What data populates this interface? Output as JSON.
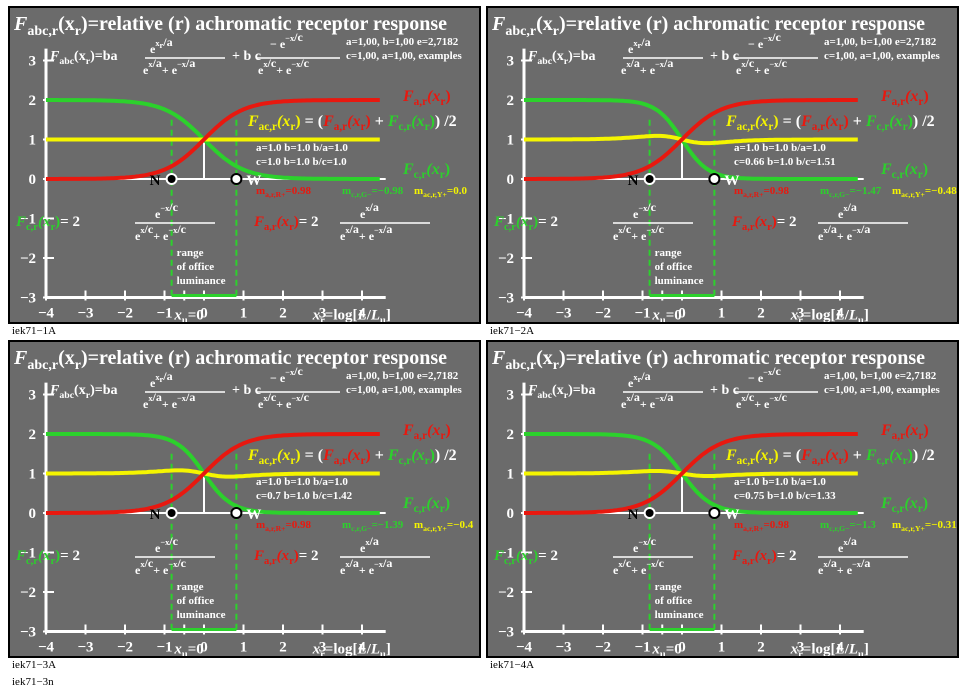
{
  "figure_code": "iek71−3n",
  "common": {
    "title_prefix": "F",
    "title_sub": "abc,r",
    "title_arg": "(x",
    "title_arg_sub": "r",
    "title_rest": ")=relative (r) achromatic receptor response",
    "formula_lhs": "F",
    "formula_lhs_sub": "abc",
    "formula_lhs_arg": "(x",
    "formula_lhs_arg_sub": "r",
    "formula_lhs_close": ")=ba",
    "formula_mid": "+ b c",
    "formula_num_a": "e",
    "formula_num_a_sup": "x",
    "formula_num_a_supsub": "r",
    "formula_num_a_supdiv": "/a",
    "formula_den_a": "e",
    "formula_den_a_plus": "+ e",
    "formula_den_a_sup1": "x",
    "formula_den_a_sup1sub": "r",
    "formula_den_a_sup1div": "/a",
    "formula_den_a_sup2": "−x",
    "formula_den_a_sup2sub": "r",
    "formula_den_a_sup2div": "/a",
    "formula_num_c": "− e",
    "formula_num_c_sup": "−x",
    "formula_num_c_supsub": "r",
    "formula_num_c_supdiv": "/c",
    "formula_den_c_sup1": "x",
    "formula_den_c_sup1div": "/c",
    "formula_den_c_sup2": "−x",
    "formula_den_c_sup2div": "/c",
    "params_line1": "a=1,00, b=1,00 e=2,7182",
    "params_line2": "c=1,00, a=1,00, examples",
    "label_Fa": "F",
    "label_Fa_sub": "a,r",
    "label_Fc": "F",
    "label_Fc_sub": "c,r",
    "label_Fac": "F",
    "label_Fac_sub": "ac,r",
    "label_arg": "(x",
    "label_arg_sub": "r",
    "label_arg_close": ")",
    "label_Fac_eq": " = (",
    "label_plus": " + ",
    "label_div2": ") /2",
    "eq_c_lhs": "= 2",
    "eq_a_lhs": "= 2",
    "N": "N",
    "W": "W",
    "range_line1": "range",
    "range_line2": "of office",
    "range_line3": "luminance",
    "xu": "x",
    "xu_sub": "u",
    "xu_eq": "=0",
    "xaxis_label_x": "x",
    "xaxis_label_sub": "r",
    "xaxis_label_rest": "=log[",
    "xaxis_label_L": "L",
    "xaxis_label_slash": "/",
    "xaxis_label_Lu": "L",
    "xaxis_label_Lu_sub": "u",
    "xaxis_label_close": "]",
    "x_ticks": [
      "−4",
      "−3",
      "−2",
      "−1",
      "",
      "0",
      "1",
      "2",
      "3",
      "4"
    ],
    "y_ticks": [
      "3",
      "2",
      "1",
      "0",
      "−1",
      "−2",
      "−3"
    ],
    "colors": {
      "red": "#e8180f",
      "green": "#2cd12c",
      "yellow": "#f5f500",
      "bg": "#6b6b6b",
      "white": "#ffffff"
    }
  },
  "panels": [
    {
      "code": "iek71−1A",
      "param_line1": "a=1.0  b=1.0  b/a=1.0",
      "param_line2": "c=1.0  b=1.0  b/c=1.0",
      "m_red": "m",
      "m_red_sub": "a,r,R+",
      "m_red_val": "=0.98",
      "m_green": "m",
      "m_green_sub": "c,r,G−",
      "m_green_val": "=−0.98",
      "m_yellow": "m",
      "m_yellow_sub": "ac,r,Y+",
      "m_yellow_val": "=0.0"
    },
    {
      "code": "iek71−2A",
      "param_line1": "a=1.0  b=1.0  b/a=1.0",
      "param_line2": "c=0.66  b=1.0  b/c=1.51",
      "m_red": "m",
      "m_red_sub": "a,r,R+",
      "m_red_val": "=0.98",
      "m_green": "m",
      "m_green_sub": "c,r,G−",
      "m_green_val": "=−1.47",
      "m_yellow": "m",
      "m_yellow_sub": "ac,r,Y+",
      "m_yellow_val": "=−0.48"
    },
    {
      "code": "iek71−3A",
      "param_line1": "a=1.0  b=1.0  b/a=1.0",
      "param_line2": "c=0.7  b=1.0  b/c=1.42",
      "m_red": "m",
      "m_red_sub": "a,r,R+",
      "m_red_val": "=0.98",
      "m_green": "m",
      "m_green_sub": "c,r,G−",
      "m_green_val": "=−1.39",
      "m_yellow": "m",
      "m_yellow_sub": "ac,r,Y+",
      "m_yellow_val": "=−0.4"
    },
    {
      "code": "iek71−4A",
      "param_line1": "a=1.0  b=1.0  b/a=1.0",
      "param_line2": "c=0.75  b=1.0  b/c=1.33",
      "m_red": "m",
      "m_red_sub": "a,r,R+",
      "m_red_val": "=0.98",
      "m_green": "m",
      "m_green_sub": "c,r,G−",
      "m_green_val": "=−1.3",
      "m_yellow": "m",
      "m_yellow_sub": "ac,r,Y+",
      "m_yellow_val": "=−0.31"
    }
  ],
  "chart_data": [
    {
      "type": "line",
      "xlim": [
        -4,
        4.5
      ],
      "ylim": [
        -3,
        3.2
      ],
      "series": [
        {
          "color": "red",
          "function": "Fa",
          "a": 1.0,
          "b": 1.0
        },
        {
          "color": "green",
          "function": "Fc",
          "c": 1.0,
          "b": 1.0
        },
        {
          "color": "yellow",
          "function": "Fac",
          "a": 1.0,
          "c": 1.0
        }
      ],
      "markers": [
        {
          "label": "N",
          "x": -0.82,
          "y": 0
        },
        {
          "label": "W",
          "x": 0.82,
          "y": 0
        }
      ],
      "range_x": [
        -0.82,
        0.82
      ]
    },
    {
      "type": "line",
      "xlim": [
        -4,
        4.5
      ],
      "ylim": [
        -3,
        3.2
      ],
      "series": [
        {
          "color": "red",
          "function": "Fa",
          "a": 1.0,
          "b": 1.0
        },
        {
          "color": "green",
          "function": "Fc",
          "c": 0.66,
          "b": 1.0
        },
        {
          "color": "yellow",
          "function": "Fac",
          "a": 1.0,
          "c": 0.66
        }
      ],
      "markers": [
        {
          "label": "N",
          "x": -0.82,
          "y": 0
        },
        {
          "label": "W",
          "x": 0.82,
          "y": 0
        }
      ],
      "range_x": [
        -0.82,
        0.82
      ]
    },
    {
      "type": "line",
      "xlim": [
        -4,
        4.5
      ],
      "ylim": [
        -3,
        3.2
      ],
      "series": [
        {
          "color": "red",
          "function": "Fa",
          "a": 1.0,
          "b": 1.0
        },
        {
          "color": "green",
          "function": "Fc",
          "c": 0.7,
          "b": 1.0
        },
        {
          "color": "yellow",
          "function": "Fac",
          "a": 1.0,
          "c": 0.7
        }
      ],
      "markers": [
        {
          "label": "N",
          "x": -0.82,
          "y": 0
        },
        {
          "label": "W",
          "x": 0.82,
          "y": 0
        }
      ],
      "range_x": [
        -0.82,
        0.82
      ]
    },
    {
      "type": "line",
      "xlim": [
        -4,
        4.5
      ],
      "ylim": [
        -3,
        3.2
      ],
      "series": [
        {
          "color": "red",
          "function": "Fa",
          "a": 1.0,
          "b": 1.0
        },
        {
          "color": "green",
          "function": "Fc",
          "c": 0.75,
          "b": 1.0
        },
        {
          "color": "yellow",
          "function": "Fac",
          "a": 1.0,
          "c": 0.75
        }
      ],
      "markers": [
        {
          "label": "N",
          "x": -0.82,
          "y": 0
        },
        {
          "label": "W",
          "x": 0.82,
          "y": 0
        }
      ],
      "range_x": [
        -0.82,
        0.82
      ]
    }
  ]
}
